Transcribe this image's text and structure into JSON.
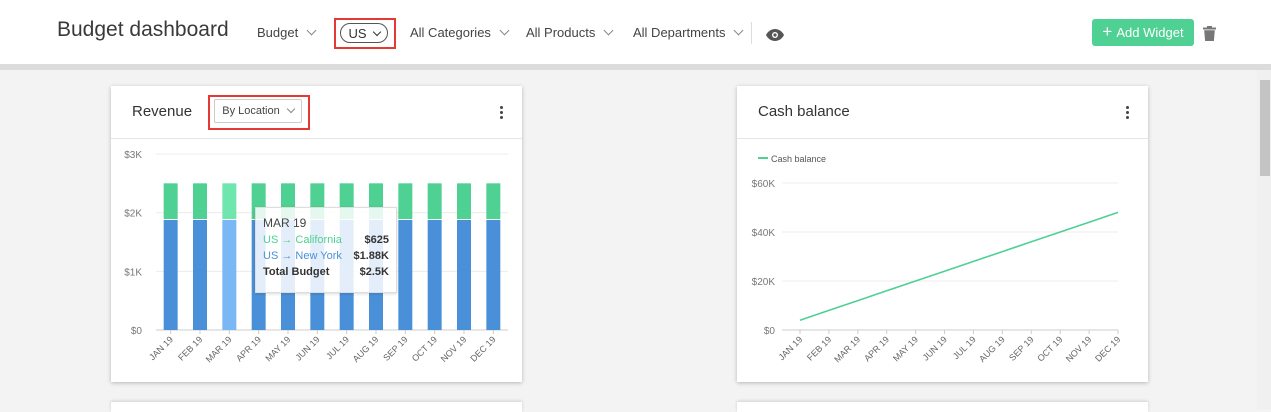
{
  "header": {
    "title": "Budget dashboard",
    "filters": {
      "budget": "Budget",
      "country": "US",
      "categories": "All Categories",
      "products": "All Products",
      "departments": "All Departments"
    },
    "add_widget_label": "Add Widget"
  },
  "icons": {
    "visibility": "eye-icon",
    "delete": "trash-icon",
    "add": "plus-icon",
    "menu": "kebab-icon"
  },
  "colors": {
    "accent": "#4ed192",
    "bar_top": "#4ed192",
    "bar_bottom": "#4a90d9",
    "bar_highlight_top": "#6fe6ad",
    "bar_highlight_bottom": "#7ab8f5",
    "highlight_box": "#e53935"
  },
  "revenue_card": {
    "title": "Revenue",
    "group_by": "By Location",
    "tooltip": {
      "month": "MAR 19",
      "rows": [
        {
          "label": "US → California",
          "value": "$625",
          "color": "#4ed192"
        },
        {
          "label": "US → New York",
          "value": "$1.88K",
          "color": "#4a90d9"
        }
      ],
      "total_label": "Total Budget",
      "total_value": "$2.5K"
    }
  },
  "cash_card": {
    "title": "Cash balance"
  },
  "chart_data": [
    {
      "type": "bar",
      "stacked": true,
      "categories": [
        "JAN 19",
        "FEB 19",
        "MAR 19",
        "APR 19",
        "MAY 19",
        "JUN 19",
        "JUL 19",
        "AUG 19",
        "SEP 19",
        "OCT 19",
        "NOV 19",
        "DEC 19"
      ],
      "series": [
        {
          "name": "US → New York",
          "values": [
            1875,
            1875,
            1875,
            1875,
            1875,
            1875,
            1875,
            1875,
            1875,
            1875,
            1875,
            1875
          ]
        },
        {
          "name": "US → California",
          "values": [
            625,
            625,
            625,
            625,
            625,
            625,
            625,
            625,
            625,
            625,
            625,
            625
          ]
        }
      ],
      "yticks": [
        "$0",
        "$1K",
        "$2K",
        "$3K"
      ],
      "ylim": [
        0,
        3000
      ],
      "highlighted_index": 2,
      "grid": true
    },
    {
      "type": "line",
      "categories": [
        "JAN 19",
        "FEB 19",
        "MAR 19",
        "APR 19",
        "MAY 19",
        "JUN 19",
        "JUL 19",
        "AUG 19",
        "SEP 19",
        "OCT 19",
        "NOV 19",
        "DEC 19"
      ],
      "series": [
        {
          "name": "Cash balance",
          "values": [
            4000,
            8000,
            12000,
            16000,
            20000,
            24000,
            28000,
            32000,
            36000,
            40000,
            44000,
            48000
          ]
        }
      ],
      "yticks": [
        "$0",
        "$20K",
        "$40K",
        "$60K"
      ],
      "ylim": [
        0,
        60000
      ],
      "legend": "top-left",
      "grid": true
    }
  ]
}
